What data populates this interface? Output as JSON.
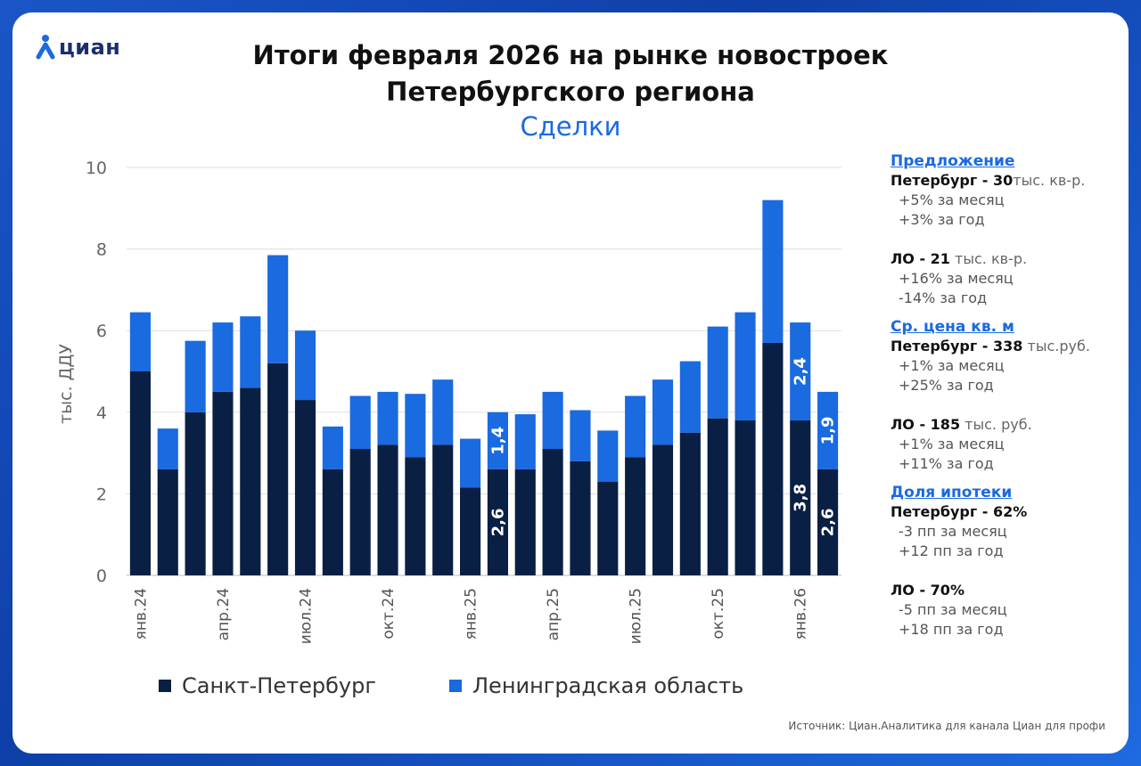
{
  "brand": {
    "name": "циан"
  },
  "title": {
    "line1": "Итоги февраля 2026 на рынке новостроек",
    "line2": "Петербургского региона"
  },
  "subtitle": "Сделки",
  "colors": {
    "spb": "#0a1f44",
    "lo": "#1a6ae0",
    "accent": "#1a6ae0"
  },
  "chart_data": {
    "type": "bar",
    "stacked": true,
    "ylabel": "тыс. ДДУ",
    "ylim": [
      0,
      10
    ],
    "yticks": [
      0,
      2,
      4,
      6,
      8,
      10
    ],
    "grid": true,
    "legend_position": "bottom",
    "xtick_labels": [
      "янв.24",
      "апр.24",
      "июл.24",
      "окт.24",
      "янв.25",
      "апр.25",
      "июл.25",
      "окт.25",
      "янв.26"
    ],
    "xtick_indices": [
      0,
      3,
      6,
      9,
      12,
      15,
      18,
      21,
      24
    ],
    "categories": [
      "янв.24",
      "фев.24",
      "мар.24",
      "апр.24",
      "май.24",
      "июн.24",
      "июл.24",
      "авг.24",
      "сен.24",
      "окт.24",
      "ноя.24",
      "дек.24",
      "янв.25",
      "фев.25",
      "мар.25",
      "апр.25",
      "май.25",
      "июн.25",
      "июл.25",
      "авг.25",
      "сен.25",
      "окт.25",
      "ноя.25",
      "дек.25",
      "янв.26",
      "фев.26"
    ],
    "series": [
      {
        "name": "Санкт-Петербург",
        "values": [
          5.0,
          2.6,
          4.0,
          4.5,
          4.6,
          5.2,
          4.3,
          2.6,
          3.1,
          3.2,
          2.9,
          3.2,
          2.15,
          2.6,
          2.6,
          3.1,
          2.8,
          2.3,
          2.9,
          3.2,
          3.5,
          3.85,
          3.8,
          5.7,
          3.8,
          2.6
        ]
      },
      {
        "name": "Ленинградская область",
        "values": [
          1.45,
          1.0,
          1.75,
          1.7,
          1.75,
          2.65,
          1.7,
          1.05,
          1.3,
          1.3,
          1.55,
          1.6,
          1.2,
          1.4,
          1.35,
          1.4,
          1.25,
          1.25,
          1.5,
          1.6,
          1.75,
          2.25,
          2.65,
          3.5,
          2.4,
          1.9
        ]
      }
    ],
    "data_labels": [
      {
        "index": 13,
        "series": 0,
        "text": "2,6"
      },
      {
        "index": 13,
        "series": 1,
        "text": "1,4"
      },
      {
        "index": 24,
        "series": 0,
        "text": "3,8"
      },
      {
        "index": 24,
        "series": 1,
        "text": "2,4"
      },
      {
        "index": 25,
        "series": 0,
        "text": "2,6"
      },
      {
        "index": 25,
        "series": 1,
        "text": "1,9"
      }
    ]
  },
  "legend": {
    "spb": "Санкт-Петербург",
    "lo": "Ленинградская область"
  },
  "side": {
    "offer": {
      "header": "Предложение",
      "spb_label": "Петербург - 30",
      "spb_unit": "тыс. кв-р.",
      "spb_m": "+5% за месяц",
      "spb_y": "+3% за год",
      "lo_label": "ЛО - 21",
      "lo_unit": " тыс. кв-р.",
      "lo_m": "+16% за месяц",
      "lo_y": "-14% за год"
    },
    "price": {
      "header": "Ср. цена кв. м",
      "spb_label": "Петербург - 338",
      "spb_unit": " тыс.руб.",
      "spb_m": "+1% за месяц",
      "spb_y": "+25% за год",
      "lo_label": "ЛО - 185",
      "lo_unit": " тыс. руб.",
      "lo_m": "+1% за месяц",
      "lo_y": "+11% за год"
    },
    "mortgage": {
      "header": "Доля ипотеки",
      "spb_label": "Петербург - 62%",
      "spb_m": "-3 пп за месяц",
      "spb_y": "+12 пп за год",
      "lo_label": "ЛО - 70%",
      "lo_m": "-5 пп за месяц",
      "lo_y": "+18 пп за год"
    }
  },
  "source": "Источник: Циан.Аналитика для канала Циан для профи"
}
